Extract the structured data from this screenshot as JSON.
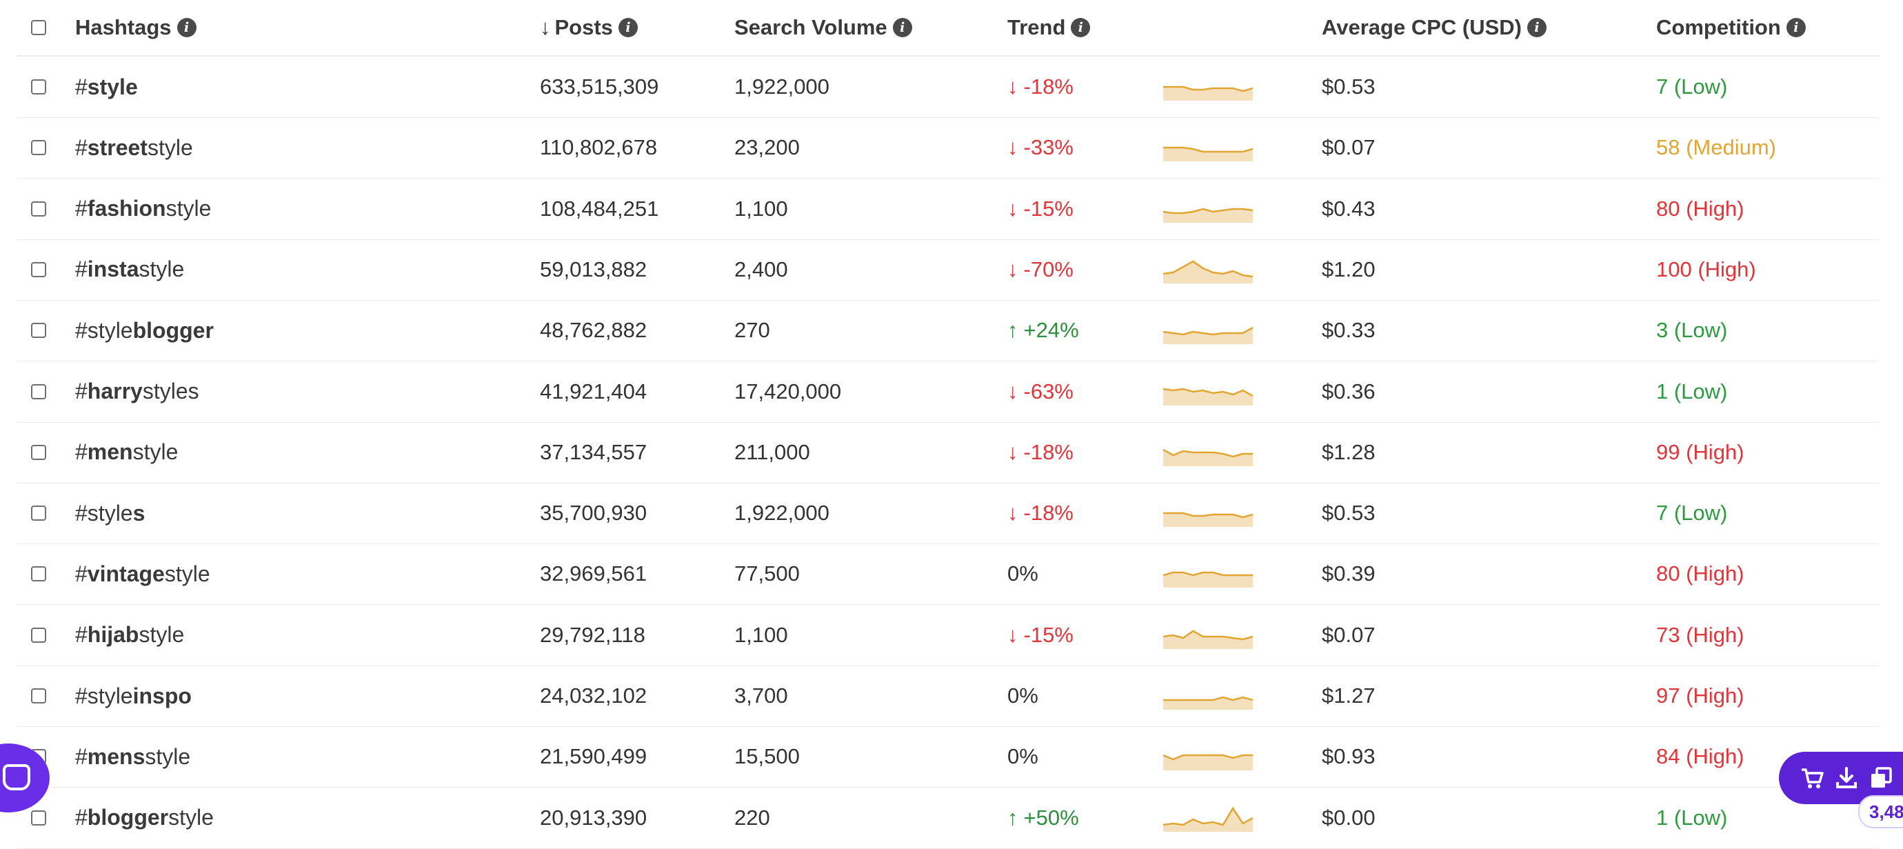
{
  "header": {
    "hashtags": "Hashtags",
    "posts": "Posts",
    "search_volume": "Search Volume",
    "trend": "Trend",
    "avg_cpc": "Average CPC (USD)",
    "competition": "Competition",
    "sort_arrow": "↓",
    "info_glyph": "i"
  },
  "rows": [
    {
      "tag_pre": "#",
      "tag_bold": "style",
      "tag_post": "",
      "posts": "633,515,309",
      "volume": "1,922,000",
      "trend": "-18%",
      "trend_dir": "down",
      "cpc": "$0.53",
      "competition": "7 (Low)",
      "level": "low",
      "spark": [
        14,
        14,
        14,
        10,
        10,
        12,
        12,
        12,
        8,
        12
      ]
    },
    {
      "tag_pre": "#",
      "tag_bold": "street",
      "tag_post": "style",
      "posts": "110,802,678",
      "volume": "23,200",
      "trend": "-33%",
      "trend_dir": "down",
      "cpc": "$0.07",
      "competition": "58 (Medium)",
      "level": "medium",
      "spark": [
        14,
        14,
        14,
        12,
        8,
        8,
        8,
        8,
        8,
        12
      ]
    },
    {
      "tag_pre": "#",
      "tag_bold": "fashion",
      "tag_post": "style",
      "posts": "108,484,251",
      "volume": "1,100",
      "trend": "-15%",
      "trend_dir": "down",
      "cpc": "$0.43",
      "competition": "80 (High)",
      "level": "high",
      "spark": [
        10,
        8,
        8,
        10,
        14,
        10,
        12,
        14,
        14,
        12
      ]
    },
    {
      "tag_pre": "#",
      "tag_bold": "insta",
      "tag_post": "style",
      "posts": "59,013,882",
      "volume": "2,400",
      "trend": "-70%",
      "trend_dir": "down",
      "cpc": "$1.20",
      "competition": "100 (High)",
      "level": "high",
      "spark": [
        8,
        10,
        18,
        26,
        16,
        10,
        8,
        12,
        6,
        4
      ]
    },
    {
      "tag_pre": "#",
      "tag_bold": "",
      "tag_post": "style",
      "tag_bold2": "blogger",
      "posts": "48,762,882",
      "volume": "270",
      "trend": "+24%",
      "trend_dir": "up",
      "cpc": "$0.33",
      "competition": "3 (Low)",
      "level": "low",
      "spark": [
        12,
        10,
        8,
        12,
        10,
        8,
        10,
        10,
        10,
        18
      ]
    },
    {
      "tag_pre": "#",
      "tag_bold": "harry",
      "tag_post": "styles",
      "posts": "41,921,404",
      "volume": "17,420,000",
      "trend": "-63%",
      "trend_dir": "down",
      "cpc": "$0.36",
      "competition": "1 (Low)",
      "level": "low",
      "spark": [
        18,
        16,
        18,
        14,
        16,
        12,
        14,
        10,
        16,
        8
      ]
    },
    {
      "tag_pre": "#",
      "tag_bold": "men",
      "tag_post": "style",
      "posts": "37,134,557",
      "volume": "211,000",
      "trend": "-18%",
      "trend_dir": "down",
      "cpc": "$1.28",
      "competition": "99 (High)",
      "level": "high",
      "spark": [
        18,
        10,
        16,
        14,
        14,
        14,
        12,
        8,
        12,
        12
      ]
    },
    {
      "tag_pre": "#",
      "tag_bold": "",
      "tag_post": "style",
      "tag_bold2": "s",
      "posts": "35,700,930",
      "volume": "1,922,000",
      "trend": "-18%",
      "trend_dir": "down",
      "cpc": "$0.53",
      "competition": "7 (Low)",
      "level": "low",
      "spark": [
        14,
        14,
        14,
        10,
        10,
        12,
        12,
        12,
        8,
        12
      ]
    },
    {
      "tag_pre": "#",
      "tag_bold": "vintage",
      "tag_post": "style",
      "posts": "32,969,561",
      "volume": "77,500",
      "trend": "0%",
      "trend_dir": "flat",
      "cpc": "$0.39",
      "competition": "80 (High)",
      "level": "high",
      "spark": [
        12,
        16,
        16,
        12,
        16,
        16,
        12,
        12,
        12,
        12
      ]
    },
    {
      "tag_pre": "#",
      "tag_bold": "hijab",
      "tag_post": "style",
      "posts": "29,792,118",
      "volume": "1,100",
      "trend": "-15%",
      "trend_dir": "down",
      "cpc": "$0.07",
      "competition": "73 (High)",
      "level": "high",
      "spark": [
        12,
        14,
        10,
        20,
        12,
        12,
        12,
        10,
        8,
        12
      ]
    },
    {
      "tag_pre": "#",
      "tag_bold": "",
      "tag_post": "style",
      "tag_bold2": "inspo",
      "posts": "24,032,102",
      "volume": "3,700",
      "trend": "0%",
      "trend_dir": "flat",
      "cpc": "$1.27",
      "competition": "97 (High)",
      "level": "high",
      "spark": [
        8,
        8,
        8,
        8,
        8,
        8,
        12,
        8,
        12,
        8
      ]
    },
    {
      "tag_pre": "#",
      "tag_bold": "mens",
      "tag_post": "style",
      "posts": "21,590,499",
      "volume": "15,500",
      "trend": "0%",
      "trend_dir": "flat",
      "cpc": "$0.93",
      "competition": "84 (High)",
      "level": "high",
      "spark": [
        16,
        10,
        16,
        16,
        16,
        16,
        16,
        12,
        16,
        16
      ]
    },
    {
      "tag_pre": "#",
      "tag_bold": "blogger",
      "tag_post": "style",
      "posts": "20,913,390",
      "volume": "220",
      "trend": "+50%",
      "trend_dir": "up",
      "cpc": "$0.00",
      "competition": "1 (Low)",
      "level": "low",
      "spark": [
        4,
        6,
        4,
        12,
        6,
        8,
        4,
        28,
        6,
        14
      ]
    }
  ],
  "colors": {
    "down": "#e0363a",
    "up": "#2e8f3c",
    "low": "#2e9a3f",
    "medium": "#e3a531",
    "high": "#e0363a",
    "spark_line": "#e3a531",
    "spark_fill": "#f5e0bd",
    "accent": "#5b22d6"
  },
  "icons": {
    "trend_down": "arrow-down-icon",
    "trend_up": "arrow-up-icon",
    "cart": "cart-icon",
    "download": "download-icon",
    "copy": "copy-icon",
    "chat": "chat-icon"
  },
  "widgets": {
    "selected_count": "3,48"
  }
}
